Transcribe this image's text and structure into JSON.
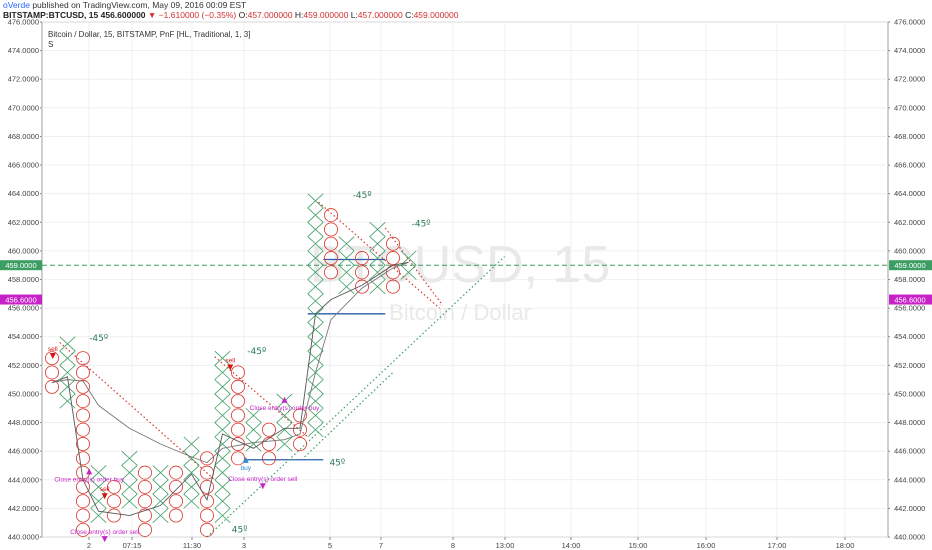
{
  "header": {
    "author": "oVerde",
    "published": "published on TradingView.com, May 09, 2016 00:09 EST",
    "symbol": "BITSTAMP:BTCUSD, 15",
    "price": "456.600000",
    "change": "−1.610000 (−0.35%)",
    "o_label": "O:",
    "o_value": "457.000000",
    "h_label": "H:",
    "h_value": "459.000000",
    "l_label": "L:",
    "l_value": "457.000000",
    "c_label": "C:",
    "c_value": "459.000000"
  },
  "legend": {
    "title": "Bitcoin / Dollar, 15, BITSTAMP, PnF [HL, Traditional, 1, 3]",
    "study": "S"
  },
  "watermark": {
    "big": "BTCUSD, 15",
    "small": "Bitcoin / Dollar"
  },
  "colors": {
    "x_box": "#3d9e63",
    "o_box": "#d9342b",
    "hline_green": "#3d9e63",
    "blue_line": "#2a5caa",
    "trend_red": "#d9342b",
    "trend_green": "#3d9e63",
    "price_tag_green": "#3d9e63",
    "price_tag_magenta": "#c722c7",
    "signal_magenta": "#c722c7",
    "signal_blue": "#2b8bd6"
  },
  "chart_data": {
    "type": "point-and-figure",
    "title": "Bitcoin / Dollar, 15, BITSTAMP, PnF [HL, Traditional, 1, 3]",
    "box_size": 1,
    "reversal": 3,
    "ylim": [
      440,
      476
    ],
    "y_ticks": [
      "440.0000",
      "442.0000",
      "444.0000",
      "446.0000",
      "448.0000",
      "450.0000",
      "452.0000",
      "454.0000",
      "456.0000",
      "458.0000",
      "460.0000",
      "462.0000",
      "464.0000",
      "466.0000",
      "468.0000",
      "470.0000",
      "472.0000",
      "474.0000",
      "476.0000"
    ],
    "x_ticks": [
      "2",
      "07:15",
      "11:30",
      "3",
      "5",
      "7",
      "8",
      "13:00",
      "14:00",
      "15:00",
      "16:00",
      "17:00",
      "18:00"
    ],
    "price_tags": [
      {
        "value": 459.0,
        "label": "459.0000"
      },
      {
        "value": 456.6,
        "label": "456.6000"
      }
    ],
    "columns": [
      {
        "type": "O",
        "low": 450,
        "high": 452
      },
      {
        "type": "X",
        "low": 449,
        "high": 453
      },
      {
        "type": "O",
        "low": 440,
        "high": 452
      },
      {
        "type": "X",
        "low": 441,
        "high": 444
      },
      {
        "type": "O",
        "low": 441,
        "high": 443
      },
      {
        "type": "X",
        "low": 442,
        "high": 445
      },
      {
        "type": "O",
        "low": 440,
        "high": 444
      },
      {
        "type": "X",
        "low": 441,
        "high": 444
      },
      {
        "type": "O",
        "low": 441,
        "high": 444
      },
      {
        "type": "X",
        "low": 442,
        "high": 446
      },
      {
        "type": "O",
        "low": 440,
        "high": 445
      },
      {
        "type": "X",
        "low": 441,
        "high": 452
      },
      {
        "type": "O",
        "low": 445,
        "high": 451
      },
      {
        "type": "X",
        "low": 446,
        "high": 448
      },
      {
        "type": "O",
        "low": 445,
        "high": 447
      },
      {
        "type": "X",
        "low": 446,
        "high": 449
      },
      {
        "type": "O",
        "low": 446,
        "high": 448
      },
      {
        "type": "X",
        "low": 447,
        "high": 463
      },
      {
        "type": "O",
        "low": 458,
        "high": 462
      },
      {
        "type": "X",
        "low": 457,
        "high": 460
      },
      {
        "type": "O",
        "low": 457,
        "high": 459
      },
      {
        "type": "X",
        "low": 457,
        "high": 461
      },
      {
        "type": "O",
        "low": 457,
        "high": 460
      },
      {
        "type": "X",
        "low": 458,
        "high": 459
      }
    ],
    "moving_average": [
      {
        "col": 0,
        "value": 450.8
      },
      {
        "col": 1,
        "value": 451.0
      },
      {
        "col": 2,
        "value": 450.9
      },
      {
        "col": 3,
        "value": 449.2
      },
      {
        "col": 5,
        "value": 447.6
      },
      {
        "col": 7,
        "value": 446.5
      },
      {
        "col": 9,
        "value": 445.6
      },
      {
        "col": 10,
        "value": 445.2
      },
      {
        "col": 11,
        "value": 446.2
      },
      {
        "col": 13,
        "value": 446.6
      },
      {
        "col": 15,
        "value": 446.8
      },
      {
        "col": 16,
        "value": 447.2
      },
      {
        "col": 17,
        "value": 451.5
      },
      {
        "col": 18,
        "value": 455.2
      },
      {
        "col": 20,
        "value": 457.4
      },
      {
        "col": 22,
        "value": 458.8
      },
      {
        "col": 23,
        "value": 459.2
      }
    ],
    "price_line": [
      {
        "col": 0,
        "value": 450.8
      },
      {
        "col": 1,
        "value": 451.2
      },
      {
        "col": 2,
        "value": 444.0
      },
      {
        "col": 3,
        "value": 441.8
      },
      {
        "col": 5,
        "value": 441.5
      },
      {
        "col": 7,
        "value": 442.2
      },
      {
        "col": 9,
        "value": 444.4
      },
      {
        "col": 10,
        "value": 442.6
      },
      {
        "col": 11,
        "value": 447.2
      },
      {
        "col": 13,
        "value": 446.2
      },
      {
        "col": 15,
        "value": 447.6
      },
      {
        "col": 16,
        "value": 447.6
      },
      {
        "col": 17,
        "value": 455.6
      },
      {
        "col": 18,
        "value": 456.6
      },
      {
        "col": 20,
        "value": 457.6
      },
      {
        "col": 22,
        "value": 459.0
      },
      {
        "col": 23,
        "value": 459.2
      }
    ],
    "horizontal_levels": [
      {
        "value": 455.6,
        "from_col": 17,
        "to_col": 21.5
      },
      {
        "value": 459.4,
        "from_col": 18,
        "to_col": 21.5
      },
      {
        "value": 445.4,
        "from_col": 13,
        "to_col": 17.5
      }
    ],
    "trendlines": [
      {
        "color": "red",
        "from": {
          "col": 0.5,
          "value": 453.6
        },
        "to": {
          "col": 10.5,
          "value": 444.0
        }
      },
      {
        "color": "red",
        "from": {
          "col": 10.5,
          "value": 452.6
        },
        "to": {
          "col": 16.5,
          "value": 447.0
        }
      },
      {
        "color": "red",
        "from": {
          "col": 17.2,
          "value": 463.4
        },
        "to": {
          "col": 25.0,
          "value": 456.0
        }
      },
      {
        "color": "red",
        "from": {
          "col": 21.5,
          "value": 461.6
        },
        "to": {
          "col": 25.2,
          "value": 456.2
        }
      },
      {
        "color": "green",
        "from": {
          "col": 10.0,
          "value": 440.0
        },
        "to": {
          "col": 29.2,
          "value": 459.6
        }
      },
      {
        "color": "green",
        "from": {
          "col": 16.3,
          "value": 445.6
        },
        "to": {
          "col": 22.0,
          "value": 451.5
        }
      }
    ],
    "angle_labels": [
      {
        "text": "-45º",
        "col": 2.4,
        "value": 453.7
      },
      {
        "text": "-45º",
        "col": 12.6,
        "value": 452.8
      },
      {
        "text": "-45º",
        "col": 19.4,
        "value": 463.7
      },
      {
        "text": "-45º",
        "col": 23.2,
        "value": 461.7
      },
      {
        "text": "45º",
        "col": 17.9,
        "value": 445.0
      },
      {
        "text": "45º",
        "col": 11.6,
        "value": 440.3
      }
    ],
    "signals": [
      {
        "type": "sell",
        "label": "sell",
        "col": 0.05,
        "value": 453.0,
        "dir": "down"
      },
      {
        "type": "sell",
        "label": "sell",
        "col": 3.4,
        "value": 443.2,
        "dir": "down"
      },
      {
        "type": "sell",
        "label": "sell",
        "col": 11.5,
        "value": 452.2,
        "dir": "down"
      },
      {
        "type": "buy",
        "label": "buy",
        "col": 12.5,
        "value": 445.6,
        "dir": "up"
      },
      {
        "type": "close",
        "label": "Close entry(s) order buy",
        "col": 2.4,
        "value": 444.8,
        "dir": "up"
      },
      {
        "type": "close",
        "label": "Close entry(s) order sell",
        "col": 3.4,
        "value": 440.2,
        "dir": "down"
      },
      {
        "type": "close",
        "label": "Close entry(s) order sell",
        "col": 13.6,
        "value": 443.9,
        "dir": "down"
      },
      {
        "type": "close",
        "label": "Close entry(s) order buy",
        "col": 15.0,
        "value": 449.8,
        "dir": "up"
      }
    ]
  }
}
